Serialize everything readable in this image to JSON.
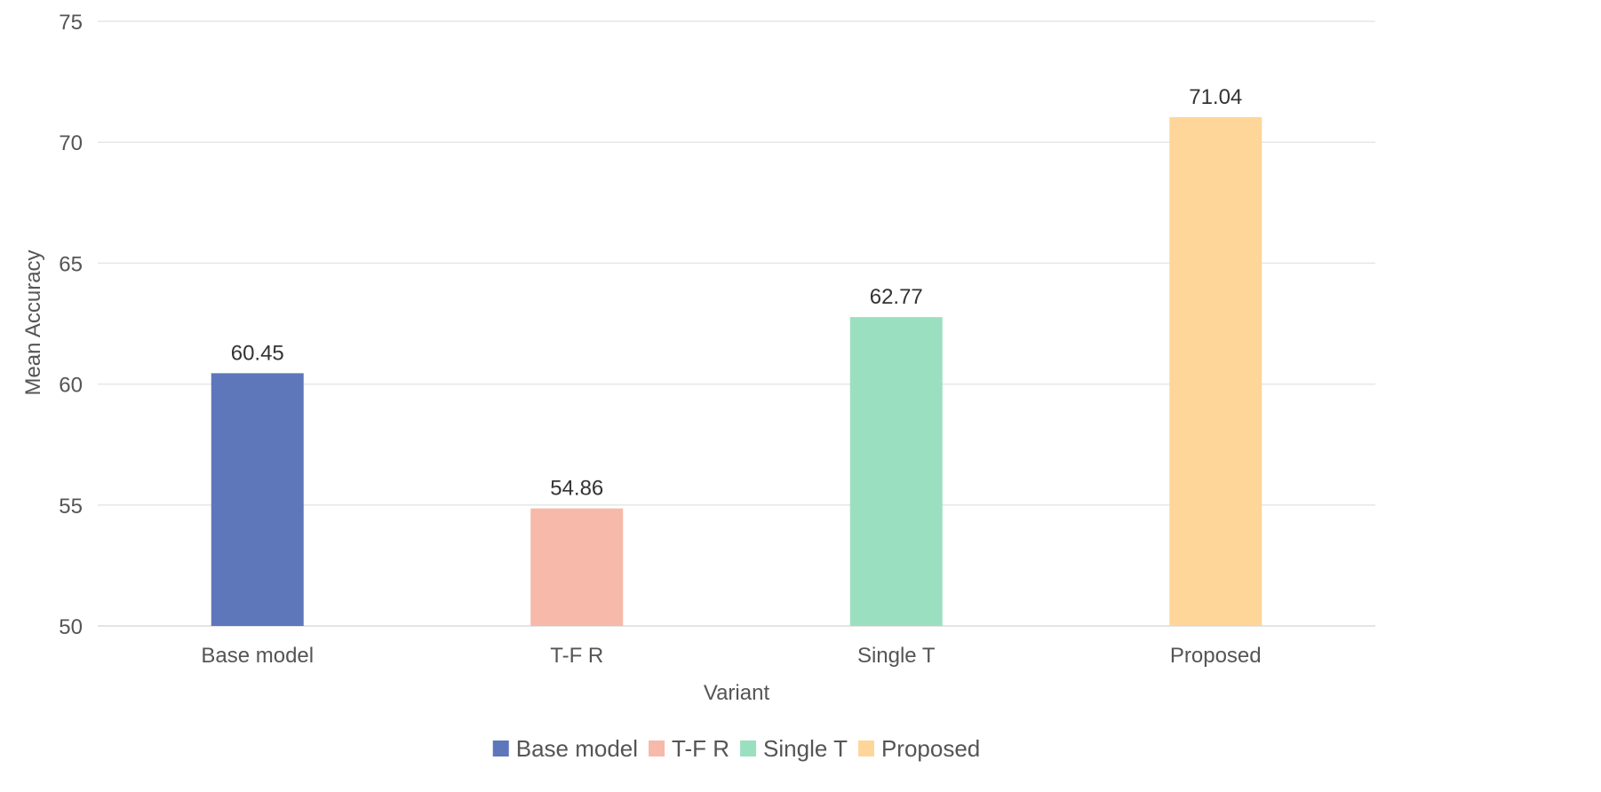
{
  "chart_data": {
    "type": "bar",
    "categories": [
      "Base model",
      "T-F R",
      "Single T",
      "Proposed"
    ],
    "values": [
      60.45,
      54.86,
      62.77,
      71.04
    ],
    "value_labels": [
      "60.45",
      "54.86",
      "62.77",
      "71.04"
    ],
    "colors": [
      "#5e76ba",
      "#f7b9a9",
      "#9bdfc1",
      "#fed699"
    ],
    "title": "",
    "xlabel": "Variant",
    "ylabel": "Mean Accuracy",
    "ylim": [
      50,
      75
    ],
    "yticks": [
      50,
      55,
      60,
      65,
      70,
      75
    ],
    "grid": true,
    "legend": {
      "position": "bottom-center",
      "entries": [
        "Base model",
        "T-F R",
        "Single T",
        "Proposed"
      ]
    }
  }
}
